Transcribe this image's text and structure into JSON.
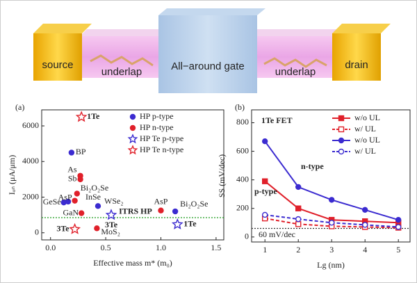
{
  "diagram": {
    "labels": {
      "source": "source",
      "underlap_left": "underlap",
      "gate": "All−around gate",
      "underlap_right": "underlap",
      "drain": "drain"
    }
  },
  "chart_data": [
    {
      "type": "scatter",
      "panel": "(a)",
      "xlabel": "Effective mass m* (m₀)",
      "ylabel": "Iₒₙ (μA/μm)",
      "xlim": [
        -0.08,
        1.57
      ],
      "ylim": [
        -400,
        6900
      ],
      "xticks": [
        {
          "value": 0,
          "label": "0.0"
        },
        {
          "value": 0.5,
          "label": "0.5"
        },
        {
          "value": 1,
          "label": "1.0"
        },
        {
          "value": 1.5,
          "label": "1.5"
        }
      ],
      "yticks": [
        0,
        2000,
        4000,
        6000
      ],
      "legend": "upper right",
      "series": [
        {
          "name": "HP p-type",
          "color": "#3b2bd0",
          "marker": "circle",
          "filled": true,
          "x": [
            0.12,
            0.16,
            0.19,
            0.43,
            1.13
          ],
          "values": [
            1700,
            1750,
            4500,
            1500,
            1200
          ],
          "labels": [
            "GeSe",
            null,
            "BP",
            "InSe",
            "Bi₂O₂Se"
          ]
        },
        {
          "name": "HP n-type",
          "color": "#e0202a",
          "marker": "circle",
          "filled": true,
          "x": [
            0.27,
            0.27,
            0.24,
            0.22,
            0.28,
            0.42,
            1.0
          ],
          "values": [
            3200,
            3000,
            2200,
            1800,
            1100,
            250,
            1250
          ],
          "labels": [
            "As",
            "Sb",
            "Bi₂O₂Se",
            "AsP",
            "GaN",
            "MoS₂",
            "AsP"
          ]
        },
        {
          "name": "HP Te p-type",
          "color": "#3b2bd0",
          "marker": "star",
          "filled": false,
          "x": [
            0.55,
            1.15
          ],
          "values": [
            1000,
            470
          ],
          "labels": [
            "3Te",
            "1Te"
          ]
        },
        {
          "name": "HP Te n-type",
          "color": "#e0202a",
          "marker": "star",
          "filled": false,
          "x": [
            0.28,
            0.22
          ],
          "values": [
            6500,
            200
          ],
          "labels": [
            "1Te",
            "3Te"
          ]
        }
      ],
      "hline": {
        "value": 850,
        "label": "ITRS HP",
        "color": "#1a9a1a"
      },
      "annotations": [
        {
          "text": "WSe₂"
        }
      ]
    },
    {
      "type": "line",
      "panel": "(b)",
      "title": "1Te FET",
      "xlabel": "Lg (nm)",
      "ylabel": "SS (mV/dec)",
      "x": [
        1,
        2,
        3,
        4,
        5
      ],
      "xlim": [
        0.6,
        5.35
      ],
      "xticks": [
        1,
        2,
        3,
        4,
        5
      ],
      "ylim": [
        -35,
        890
      ],
      "yticks": [
        0,
        200,
        400,
        600,
        800
      ],
      "legend": "upper right",
      "series": [
        {
          "name": "w/o UL",
          "color": "#e0202a",
          "marker": "square",
          "filled": true,
          "dashed": false,
          "values": [
            390,
            200,
            120,
            110,
            100
          ]
        },
        {
          "name": "w/ UL",
          "color": "#e0202a",
          "marker": "square",
          "filled": false,
          "dashed": true,
          "values": [
            130,
            90,
            75,
            70,
            65
          ]
        },
        {
          "name": "w/o UL",
          "color": "#3b2bd0",
          "marker": "circle",
          "filled": true,
          "dashed": false,
          "values": [
            670,
            350,
            260,
            190,
            120
          ]
        },
        {
          "name": "w/ UL",
          "color": "#3b2bd0",
          "marker": "circle",
          "filled": false,
          "dashed": true,
          "values": [
            155,
            125,
            100,
            85,
            70
          ]
        }
      ],
      "hline": {
        "value": 60,
        "label": "60 mV/dec",
        "color": "#333"
      },
      "annotations": [
        {
          "text": "n-type",
          "color": "#3b2bd0"
        },
        {
          "text": "p-type",
          "color": "#e0202a"
        }
      ]
    }
  ]
}
